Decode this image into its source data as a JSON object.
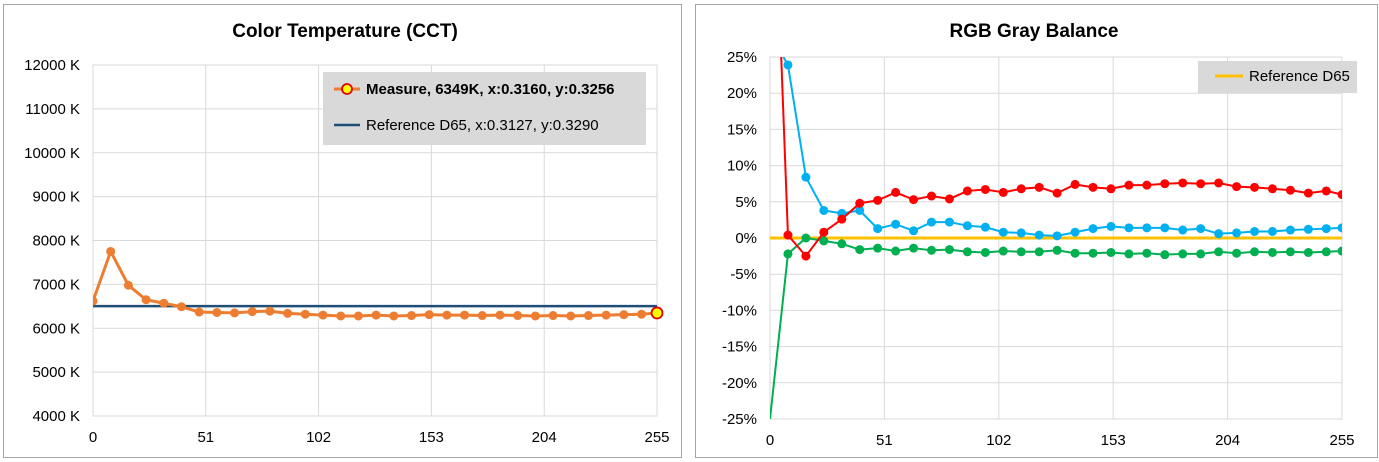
{
  "chart_data": [
    {
      "type": "line",
      "title": "Color Temperature (CCT)",
      "xlabel": "",
      "ylabel": "",
      "xlim": [
        0,
        255
      ],
      "ylim": [
        4000,
        12000
      ],
      "x_ticks": [
        "0",
        "51",
        "102",
        "153",
        "204",
        "255"
      ],
      "y_ticks": [
        "4000 K",
        "5000 K",
        "6000 K",
        "7000 K",
        "8000 K",
        "9000 K",
        "10000 K",
        "11000 K",
        "12000 K"
      ],
      "grid": true,
      "legend_position": "top-right",
      "legend": [
        {
          "label": "Measure, 6349K, x:0.3160, y:0.3256",
          "bold": true
        },
        {
          "label": "Reference D65, x:0.3127, y:0.3290",
          "bold": false
        }
      ],
      "series": [
        {
          "name": "Measure",
          "color": "#ed7d31",
          "x": [
            0,
            8,
            16,
            24,
            32,
            40,
            48,
            56,
            64,
            72,
            80,
            88,
            96,
            104,
            112,
            120,
            128,
            136,
            144,
            152,
            160,
            168,
            176,
            184,
            192,
            200,
            208,
            216,
            224,
            232,
            240,
            248,
            255
          ],
          "values": [
            6620,
            7750,
            6980,
            6650,
            6570,
            6490,
            6370,
            6360,
            6350,
            6380,
            6390,
            6340,
            6320,
            6300,
            6280,
            6280,
            6300,
            6280,
            6290,
            6310,
            6300,
            6300,
            6290,
            6300,
            6290,
            6280,
            6290,
            6280,
            6290,
            6300,
            6310,
            6320,
            6349
          ]
        },
        {
          "name": "Reference D65",
          "color": "#1f4e79",
          "x": [
            0,
            255
          ],
          "values": [
            6504,
            6504
          ]
        }
      ]
    },
    {
      "type": "line",
      "title": "RGB Gray Balance",
      "xlabel": "",
      "ylabel": "",
      "xlim": [
        0,
        255
      ],
      "ylim": [
        -25,
        25
      ],
      "x_ticks": [
        "0",
        "51",
        "102",
        "153",
        "204",
        "255"
      ],
      "y_ticks": [
        "-25%",
        "-20%",
        "-15%",
        "-10%",
        "-5%",
        "0%",
        "5%",
        "10%",
        "15%",
        "20%",
        "25%"
      ],
      "grid": true,
      "legend_position": "top-right",
      "legend": [
        {
          "label": "Reference D65"
        }
      ],
      "series": [
        {
          "color": "#ff0000",
          "x": [
            5,
            8,
            16,
            24,
            32,
            40,
            48,
            56,
            64,
            72,
            80,
            88,
            96,
            104,
            112,
            120,
            128,
            136,
            144,
            152,
            160,
            168,
            176,
            184,
            192,
            200,
            208,
            216,
            224,
            232,
            240,
            248,
            255
          ],
          "values": [
            25,
            0.4,
            -2.5,
            0.8,
            2.6,
            4.8,
            5.2,
            6.3,
            5.3,
            5.8,
            5.4,
            6.5,
            6.7,
            6.3,
            6.8,
            7.0,
            6.2,
            7.4,
            7.0,
            6.8,
            7.3,
            7.3,
            7.5,
            7.6,
            7.5,
            7.6,
            7.1,
            7.0,
            6.8,
            6.6,
            6.2,
            6.5,
            6.0
          ]
        },
        {
          "color": "#00b050",
          "x": [
            0,
            8,
            16,
            24,
            32,
            40,
            48,
            56,
            64,
            72,
            80,
            88,
            96,
            104,
            112,
            120,
            128,
            136,
            144,
            152,
            160,
            168,
            176,
            184,
            192,
            200,
            208,
            216,
            224,
            232,
            240,
            248,
            255
          ],
          "values": [
            -25,
            -2.2,
            0.0,
            -0.4,
            -0.8,
            -1.6,
            -1.4,
            -1.8,
            -1.4,
            -1.7,
            -1.6,
            -1.9,
            -2.0,
            -1.8,
            -1.9,
            -1.9,
            -1.7,
            -2.1,
            -2.1,
            -2.0,
            -2.2,
            -2.1,
            -2.3,
            -2.2,
            -2.2,
            -1.9,
            -2.1,
            -1.9,
            -2.0,
            -1.9,
            -2.0,
            -1.9,
            -1.8
          ]
        },
        {
          "color": "#00b0f0",
          "x": [
            6,
            8,
            16,
            24,
            32,
            40,
            48,
            56,
            64,
            72,
            80,
            88,
            96,
            104,
            112,
            120,
            128,
            136,
            144,
            152,
            160,
            168,
            176,
            184,
            192,
            200,
            208,
            216,
            224,
            232,
            240,
            248,
            255
          ],
          "values": [
            25,
            23.9,
            8.4,
            3.8,
            3.4,
            3.8,
            1.3,
            1.9,
            1.0,
            2.2,
            2.2,
            1.7,
            1.5,
            0.8,
            0.7,
            0.4,
            0.3,
            0.8,
            1.3,
            1.6,
            1.4,
            1.4,
            1.4,
            1.1,
            1.3,
            0.6,
            0.7,
            0.9,
            0.9,
            1.1,
            1.2,
            1.3,
            1.4
          ]
        },
        {
          "name": "Reference D65",
          "color": "#ffc000",
          "x": [
            0,
            255
          ],
          "values": [
            0,
            0
          ]
        }
      ]
    }
  ]
}
